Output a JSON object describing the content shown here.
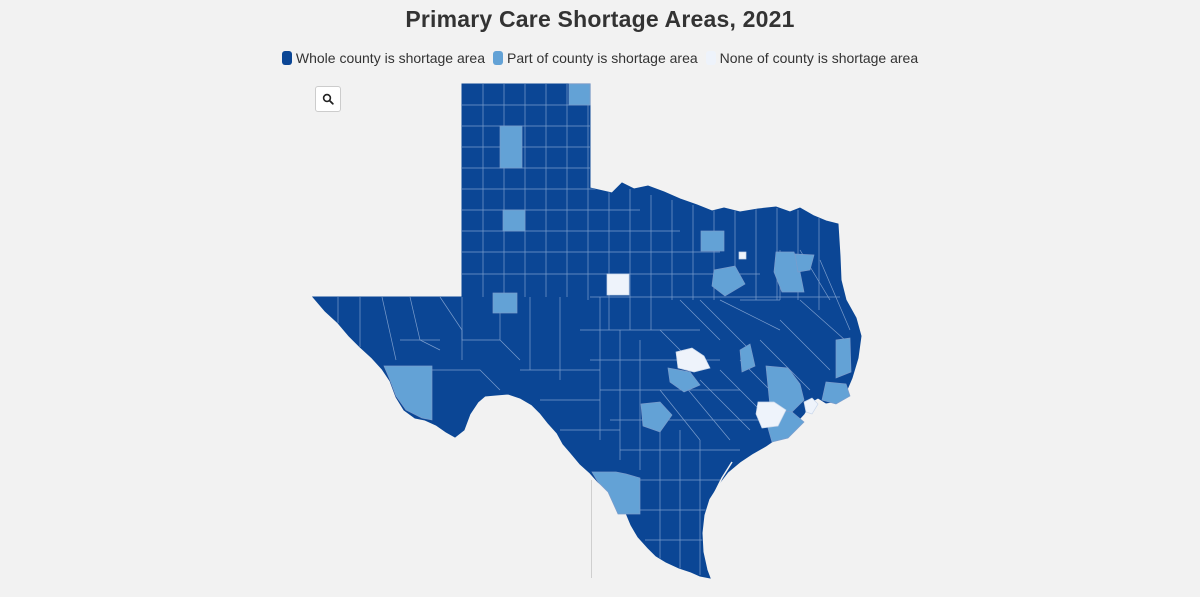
{
  "title": "Primary Care Shortage Areas, 2021",
  "legend": [
    {
      "label": "Whole county is shortage area",
      "color": "#0b4695"
    },
    {
      "label": "Part of county is shortage area",
      "color": "#63a2d6"
    },
    {
      "label": "None of county is shortage area",
      "color": "#eef3fb"
    }
  ],
  "colors": {
    "whole": "#0b4695",
    "part": "#63a2d6",
    "none": "#eef3fb",
    "border": "#7a9ccc",
    "background": "#f2f2f2"
  },
  "controls": {
    "zoom_icon": "search-icon"
  }
}
